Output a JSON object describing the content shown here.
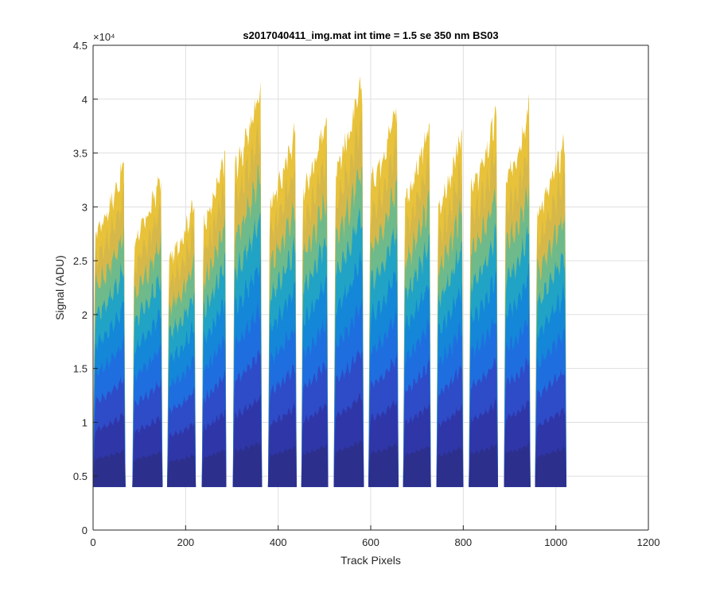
{
  "chart_data": {
    "type": "area",
    "title": "s2017040411_img.mat int time = 1.5 se  350 nm BS03",
    "xlabel": "Track Pixels",
    "ylabel": "Signal (ADU)",
    "y_exponent_label": "×10⁴",
    "xlim": [
      0,
      1200
    ],
    "ylim": [
      0,
      45000
    ],
    "x_ticks": [
      0,
      200,
      400,
      600,
      800,
      1000,
      1200
    ],
    "x_tick_labels": [
      "0",
      "200",
      "400",
      "600",
      "800",
      "1000",
      "1200"
    ],
    "y_ticks": [
      0,
      5000,
      10000,
      15000,
      20000,
      25000,
      30000,
      35000,
      40000,
      45000
    ],
    "y_tick_labels": [
      "0",
      "0.5",
      "1",
      "1.5",
      "2",
      "2.5",
      "3",
      "3.5",
      "4",
      "4.5"
    ],
    "grid": true,
    "baseline": 4000,
    "segments": [
      {
        "x": [
          0,
          70
        ],
        "peak": 35000
      },
      {
        "x": [
          85,
          150
        ],
        "peak": 34000
      },
      {
        "x": [
          160,
          222
        ],
        "peak": 31500
      },
      {
        "x": [
          235,
          288
        ],
        "peak": 36000
      },
      {
        "x": [
          302,
          365
        ],
        "peak": 42800
      },
      {
        "x": [
          378,
          440
        ],
        "peak": 38500
      },
      {
        "x": [
          450,
          508
        ],
        "peak": 40000
      },
      {
        "x": [
          520,
          585
        ],
        "peak": 43000
      },
      {
        "x": [
          595,
          660
        ],
        "peak": 41000
      },
      {
        "x": [
          670,
          730
        ],
        "peak": 39000
      },
      {
        "x": [
          742,
          800
        ],
        "peak": 38000
      },
      {
        "x": [
          812,
          875
        ],
        "peak": 40000
      },
      {
        "x": [
          888,
          945
        ],
        "peak": 41000
      },
      {
        "x": [
          955,
          1023
        ],
        "peak": 37500
      }
    ],
    "layer_fractions": [
      0.3,
      0.42,
      0.55,
      0.68,
      0.8,
      0.9,
      1.0
    ],
    "colors": [
      "#2c2f8c",
      "#2f36a8",
      "#2e4bc8",
      "#1f6ee0",
      "#1487d8",
      "#21a3c6",
      "#6fba8a",
      "#d6b84a",
      "#e8c23a"
    ]
  }
}
